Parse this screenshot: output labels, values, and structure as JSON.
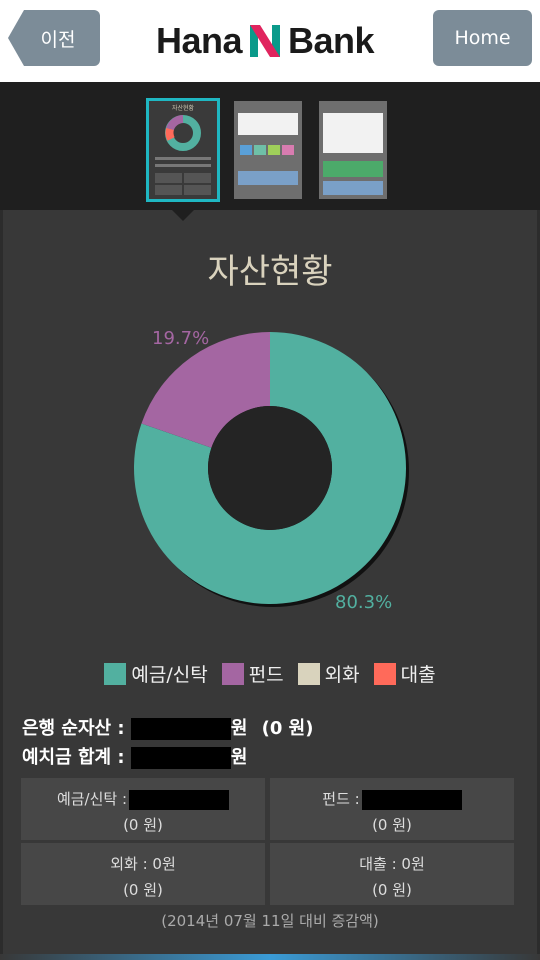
{
  "header": {
    "back_label": "이전",
    "home_label": "Home",
    "logo_left": "Hana",
    "logo_right": "Bank",
    "logo_mark": "N"
  },
  "thumbnails": [
    {
      "label": "자산현황",
      "active": true
    },
    {
      "label": "",
      "active": false
    },
    {
      "label": "",
      "active": false
    }
  ],
  "main": {
    "title": "자산현황"
  },
  "chart_data": {
    "type": "pie",
    "categories": [
      "예금/신탁",
      "펀드",
      "외화",
      "대출"
    ],
    "values": [
      80.3,
      19.7,
      0,
      0
    ],
    "labels": [
      "80.3%",
      "19.7%"
    ],
    "colors": [
      "#52b0a0",
      "#a466a2",
      "#d9d3bd",
      "#ff6a5a"
    ],
    "legend_placement": "bottom"
  },
  "summary": {
    "net_assets_label": "은행 순자산 :",
    "net_assets_unit": "원",
    "net_assets_change": "(0 원)",
    "deposit_total_label": "예치금 합계 :",
    "deposit_total_unit": "원"
  },
  "cells": [
    {
      "label": "예금/신탁 :",
      "value": "",
      "change": "(0 원)"
    },
    {
      "label": "펀드 :",
      "value": "",
      "change": "(0 원)"
    },
    {
      "label": "외화 : 0원",
      "value": "",
      "change": "(0 원)"
    },
    {
      "label": "대출 : 0원",
      "value": "",
      "change": "(0 원)"
    }
  ],
  "footnote": "(2014년 07월 11일 대비 증감액)"
}
